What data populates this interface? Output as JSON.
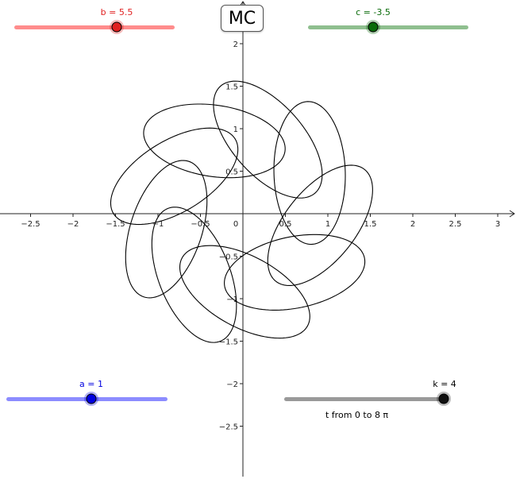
{
  "button": {
    "label": "MC"
  },
  "sliders": {
    "b": {
      "label": "b = 5.5",
      "value": 5.5,
      "min": -5,
      "max": 5,
      "color": "#e02020",
      "track_color": "#ff8c8c"
    },
    "c": {
      "label": "c = -3.5",
      "value": -3.5,
      "min": -5,
      "max": 5,
      "color": "#0a6b0a",
      "track_color": "#8fbf8f"
    },
    "a": {
      "label": "a = 1",
      "value": 1,
      "min": -5,
      "max": 5,
      "color": "#0000e0",
      "track_color": "#8c8cff"
    },
    "k": {
      "label": "k = 4",
      "value": 4,
      "min": 1,
      "max": 4,
      "color": "#000000",
      "track_color": "#999999"
    }
  },
  "caption": "t from 0 to 8 π",
  "axes": {
    "x_ticks": [
      "−2.5",
      "−2",
      "−1.5",
      "−1",
      "−0.5",
      "0",
      "0.5",
      "1",
      "1.5",
      "2",
      "2.5",
      "3"
    ],
    "y_ticks": [
      "2",
      "1.5",
      "1",
      "0.5",
      "−0.5",
      "−1",
      "−1.5",
      "−2",
      "−2.5"
    ],
    "xlim": [
      -2.85,
      3.1
    ],
    "ylim": [
      -3.1,
      2.5
    ]
  },
  "curve": {
    "type": "parametric",
    "t_range": "0 to 8π",
    "color": "#000000",
    "petals": 9,
    "ellipse_major": 0.84,
    "ellipse_minor": 0.42,
    "center_radius": 0.92
  }
}
